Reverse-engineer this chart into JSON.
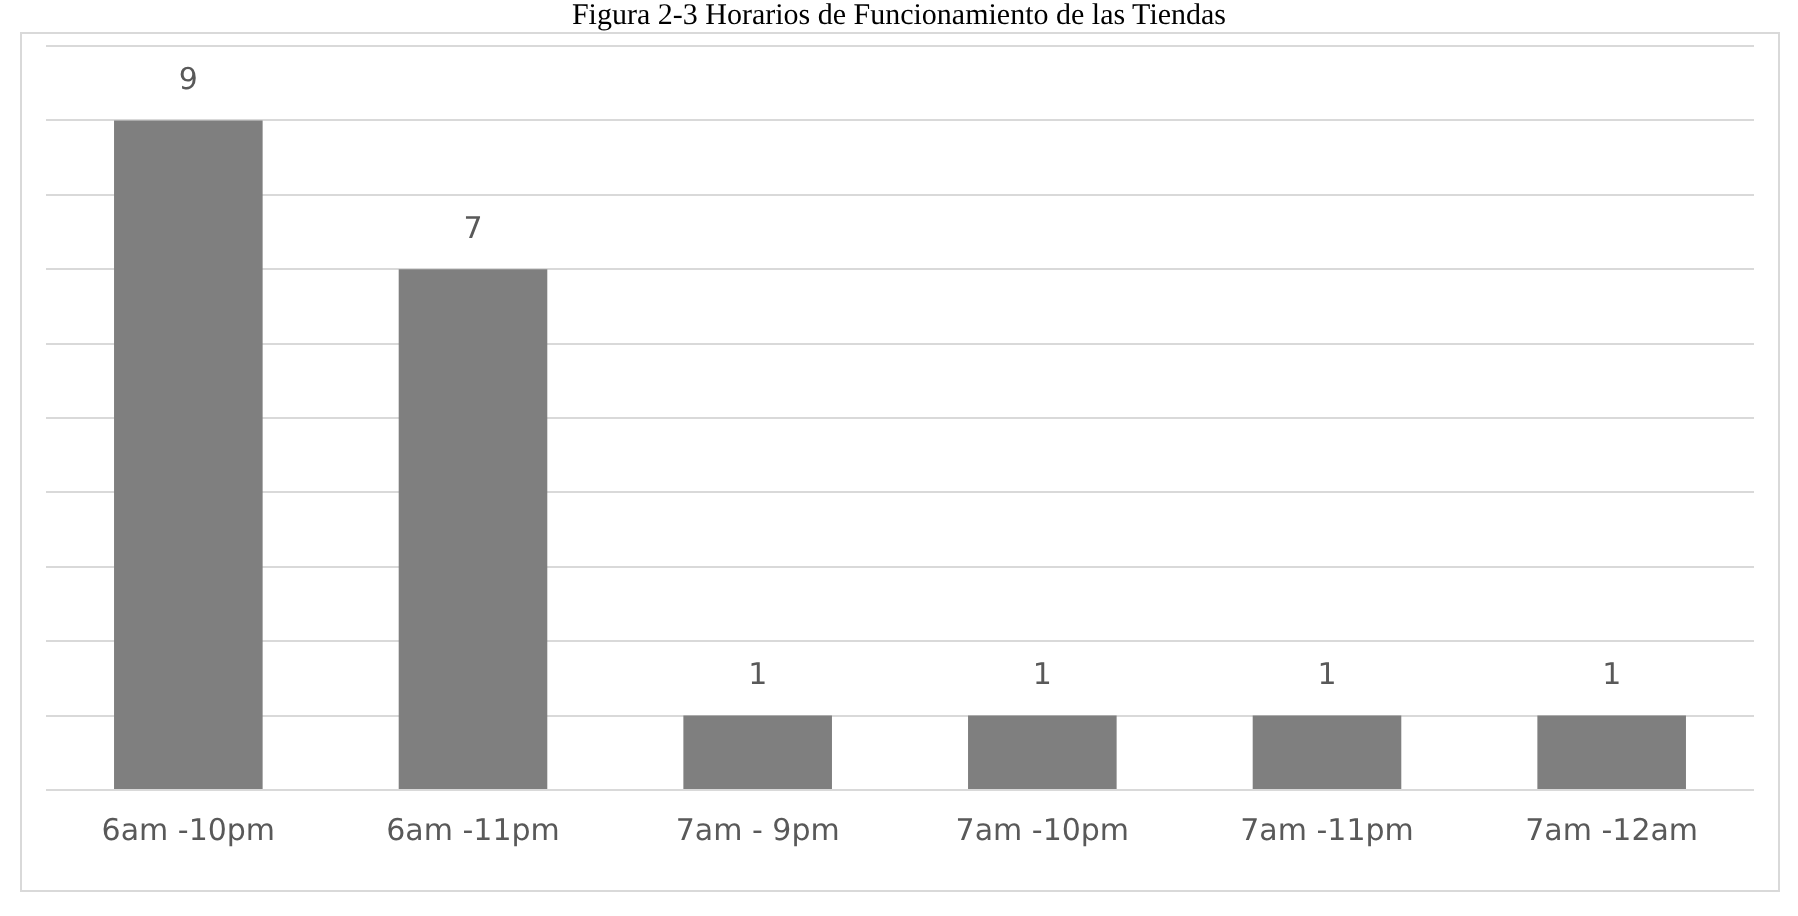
{
  "chart_data": {
    "type": "bar",
    "title": "Figura 2-3 Horarios de Funcionamiento de las Tiendas",
    "categories": [
      "6am -10pm",
      "6am -11pm",
      "7am - 9pm",
      "7am -10pm",
      "7am -11pm",
      "7am -12am"
    ],
    "values": [
      9,
      7,
      1,
      1,
      1,
      1
    ],
    "color": "#7f7f7f",
    "ylim": [
      0,
      10
    ],
    "yticks": [
      {
        "value": 0,
        "label": null
      },
      {
        "value": 1,
        "label": null
      },
      {
        "value": 2,
        "label": null
      },
      {
        "value": 3,
        "label": null
      },
      {
        "value": 4,
        "label": null
      },
      {
        "value": 5,
        "label": null
      },
      {
        "value": 6,
        "label": null
      },
      {
        "value": 7,
        "label": null
      },
      {
        "value": 8,
        "label": null
      },
      {
        "value": 9,
        "label": null
      },
      {
        "value": 10,
        "label": null
      }
    ],
    "tick_labels": "x",
    "grid": "y",
    "data_labels": true
  }
}
